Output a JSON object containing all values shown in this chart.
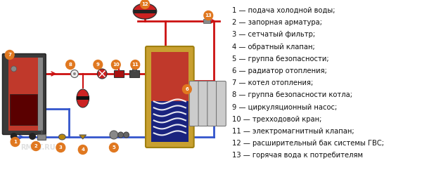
{
  "bg_color": "#ffffff",
  "legend_items": [
    "1 — подача холодной воды;",
    "2 — запорная арматура;",
    "3 — сетчатый фильтр;",
    "4 — обратный клапан;",
    "5 — группа безопасности;",
    "6 — радиатор отопления;",
    "7 — котел отопления;",
    "8 — группа безопасности котла;",
    "9 — циркуляционный насос;",
    "10 — трехходовой кран;",
    "11 — электромагнитный клапан;",
    "12 — расширительный бак системы ГВС;",
    "13 — горячая вода к потребителям"
  ],
  "red_pipe": "#cc1111",
  "blue_pipe": "#3355cc",
  "label_color": "#e07820",
  "watermark": "RMNT.RU",
  "font_size_legend": 7.2
}
